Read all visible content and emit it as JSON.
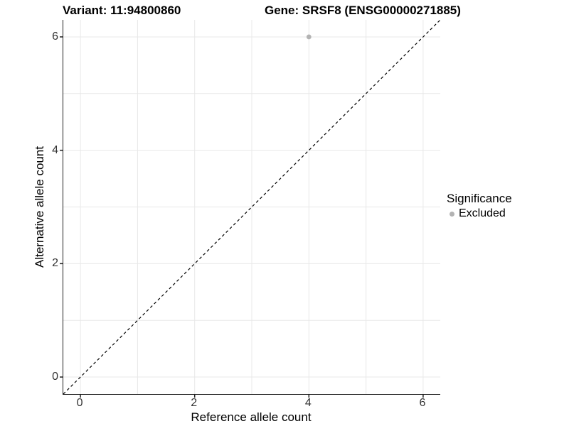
{
  "chart_data": {
    "type": "scatter",
    "title_left": "Variant: 11:94800860",
    "title_right": "Gene: SRSF8 (ENSG00000271885)",
    "xlabel": "Reference allele count",
    "ylabel": "Alternative allele count",
    "xlim": [
      -0.3,
      6.3
    ],
    "ylim": [
      -0.3,
      6.3
    ],
    "xticks": [
      "0",
      "2",
      "4",
      "6"
    ],
    "xtick_values": [
      0,
      2,
      4,
      6
    ],
    "yticks": [
      "0",
      "2",
      "4",
      "6"
    ],
    "ytick_values": [
      0,
      2,
      4,
      6
    ],
    "grid_values": [
      0,
      1,
      2,
      3,
      4,
      5,
      6
    ],
    "grid_on": true,
    "points": [
      {
        "x": 4,
        "y": 6,
        "series": "Excluded"
      }
    ],
    "reference_line": {
      "type": "identity (y = x)",
      "style": "dashed",
      "from": [
        -0.3,
        -0.3
      ],
      "to": [
        6.3,
        6.3
      ]
    },
    "legend": {
      "title": "Significance",
      "position": "right",
      "entries": [
        {
          "label": "Excluded",
          "color": "#b3b3b3"
        }
      ]
    }
  },
  "colors": {
    "background": "#ffffff",
    "grid": "#e8e8e8",
    "axis_line": "#1f1f1f",
    "tick_text": "#333333",
    "title_text": "#000000",
    "reference_line": "#000000",
    "excluded_point": "#b3b3b3"
  }
}
